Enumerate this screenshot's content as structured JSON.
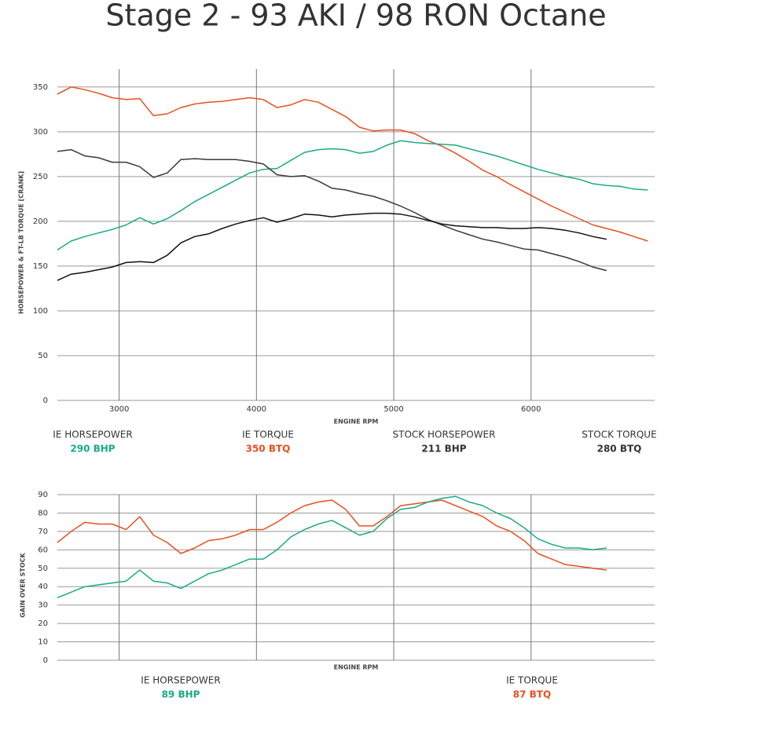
{
  "title": "Stage 2 - 93 AKI / 98 RON Octane",
  "chart_data": [
    {
      "type": "line",
      "x_label": "ENGINE RPM",
      "y_label": "HORSEPOWER & FT-LB TORQUE [CRANK]",
      "xlim": [
        2550,
        6900
      ],
      "ylim": [
        0,
        370
      ],
      "xticks": [
        3000,
        4000,
        5000,
        6000
      ],
      "yticks": [
        0,
        50,
        100,
        150,
        200,
        250,
        300,
        350
      ],
      "grid": true,
      "x": [
        2550,
        2650,
        2750,
        2850,
        2950,
        3050,
        3150,
        3250,
        3350,
        3450,
        3550,
        3650,
        3750,
        3850,
        3950,
        4050,
        4150,
        4250,
        4350,
        4450,
        4550,
        4650,
        4750,
        4850,
        4950,
        5050,
        5150,
        5250,
        5350,
        5450,
        5550,
        5650,
        5750,
        5850,
        5950,
        6050,
        6150,
        6250,
        6350,
        6450,
        6550,
        6650,
        6750,
        6850
      ],
      "series": [
        {
          "name": "IE TORQUE",
          "color": "#e8501f",
          "values": [
            342,
            350,
            347,
            343,
            338,
            336,
            337,
            318,
            320,
            327,
            331,
            333,
            334,
            336,
            338,
            336,
            327,
            330,
            336,
            333,
            325,
            317,
            305,
            301,
            302,
            302,
            298,
            290,
            284,
            276,
            267,
            257,
            250,
            241,
            233,
            225,
            217,
            210,
            203,
            196,
            192,
            188,
            183,
            178
          ]
        },
        {
          "name": "IE HORSEPOWER",
          "color": "#1aaa86",
          "values": [
            168,
            178,
            183,
            187,
            191,
            196,
            204,
            197,
            203,
            212,
            222,
            230,
            238,
            246,
            254,
            258,
            259,
            268,
            277,
            280,
            281,
            280,
            276,
            278,
            285,
            290,
            288,
            287,
            286,
            285,
            281,
            277,
            273,
            268,
            263,
            258,
            254,
            250,
            247,
            242,
            240,
            239,
            236,
            235
          ]
        },
        {
          "name": "STOCK TORQUE",
          "color": "#3a3a3a",
          "values": [
            278,
            280,
            273,
            271,
            266,
            266,
            261,
            249,
            254,
            269,
            270,
            269,
            269,
            269,
            267,
            264,
            252,
            250,
            251,
            245,
            237,
            235,
            231,
            228,
            223,
            217,
            210,
            202,
            196,
            190,
            185,
            180,
            177,
            173,
            169,
            168,
            164,
            160,
            155,
            149,
            145,
            null,
            null,
            null
          ]
        },
        {
          "name": "STOCK HORSEPOWER",
          "color": "#111111",
          "values": [
            134,
            141,
            143,
            146,
            149,
            154,
            155,
            154,
            162,
            176,
            183,
            186,
            192,
            197,
            201,
            204,
            199,
            203,
            208,
            207,
            205,
            207,
            208,
            209,
            209,
            208,
            205,
            201,
            197,
            195,
            194,
            193,
            193,
            192,
            192,
            193,
            192,
            190,
            187,
            183,
            180,
            null,
            null,
            null
          ]
        }
      ],
      "legend_items": [
        {
          "label": "IE HORSEPOWER",
          "value": "290 BHP",
          "color": "#1aaa86"
        },
        {
          "label": "IE TORQUE",
          "value": "350 BTQ",
          "color": "#e8501f"
        },
        {
          "label": "STOCK HORSEPOWER",
          "value": "211 BHP",
          "color": "#333333"
        },
        {
          "label": "STOCK TORQUE",
          "value": "280 BTQ",
          "color": "#333333"
        }
      ]
    },
    {
      "type": "line",
      "x_label": "ENGINE RPM",
      "y_label": "GAIN OVER STOCK",
      "xlim": [
        2550,
        6900
      ],
      "ylim": [
        0,
        90
      ],
      "xticks": [
        3000,
        4000,
        5000,
        6000
      ],
      "yticks": [
        0,
        10,
        20,
        30,
        40,
        50,
        60,
        70,
        80,
        90
      ],
      "grid": true,
      "x": [
        2550,
        2650,
        2750,
        2850,
        2950,
        3050,
        3150,
        3250,
        3350,
        3450,
        3550,
        3650,
        3750,
        3850,
        3950,
        4050,
        4150,
        4250,
        4350,
        4450,
        4550,
        4650,
        4750,
        4850,
        4950,
        5050,
        5150,
        5250,
        5350,
        5450,
        5550,
        5650,
        5750,
        5850,
        5950,
        6050,
        6150,
        6250,
        6350,
        6450,
        6550
      ],
      "series": [
        {
          "name": "IE TORQUE",
          "color": "#e8501f",
          "values": [
            64,
            70,
            75,
            74,
            74,
            71,
            78,
            68,
            64,
            58,
            61,
            65,
            66,
            68,
            71,
            71,
            75,
            80,
            84,
            86,
            87,
            82,
            73,
            73,
            78,
            84,
            85,
            86,
            87,
            84,
            81,
            78,
            73,
            70,
            65,
            58,
            55,
            52,
            51,
            50,
            49
          ]
        },
        {
          "name": "IE HORSEPOWER",
          "color": "#1aaa86",
          "values": [
            34,
            37,
            40,
            41,
            42,
            43,
            49,
            43,
            42,
            39,
            43,
            47,
            49,
            52,
            55,
            55,
            60,
            67,
            71,
            74,
            76,
            72,
            68,
            70,
            77,
            82,
            83,
            86,
            88,
            89,
            86,
            84,
            80,
            77,
            72,
            66,
            63,
            61,
            61,
            60,
            61
          ]
        }
      ],
      "legend_items": [
        {
          "label": "IE HORSEPOWER",
          "value": "89 BHP",
          "color": "#1aaa86"
        },
        {
          "label": "IE TORQUE",
          "value": "87 BTQ",
          "color": "#e8501f"
        }
      ]
    }
  ]
}
